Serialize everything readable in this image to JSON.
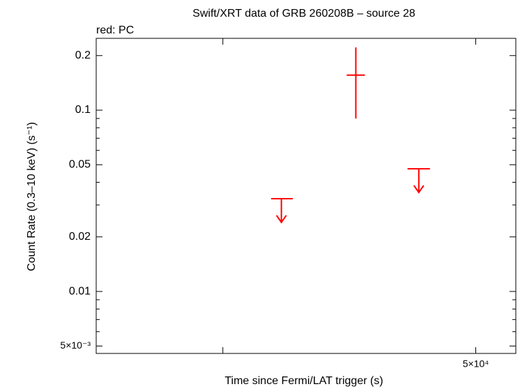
{
  "chart_data": {
    "type": "scatter",
    "title": "Swift/XRT data of GRB 260208B – source 28",
    "legend_text": "red: PC",
    "x_label": "Time since Fermi/LAT trigger (s)",
    "y_label": "Count Rate (0.3–10 keV) (s⁻¹)",
    "xlog": true,
    "ylog": true,
    "xlim": [
      35770,
      51800
    ],
    "ylim": [
      0.00455,
      0.249
    ],
    "xticks": [
      {
        "value": 50000,
        "label": "5×10⁴"
      }
    ],
    "xminorticks": [
      40000
    ],
    "yticks": [
      {
        "value": 0.005,
        "label": "5×10⁻³"
      },
      0.01,
      0.02,
      0.05,
      0.1,
      0.2
    ],
    "yminorticks": [
      0.006,
      0.007,
      0.008,
      0.009,
      0.03,
      0.04,
      0.06,
      0.07,
      0.08,
      0.09
    ],
    "series": [
      {
        "name": "PC",
        "color": "#ff0000",
        "x": [
          42120,
          44980,
          47550
        ],
        "x_low": [
          41740,
          44620,
          47080
        ],
        "x_high": [
          42550,
          45340,
          48020
        ],
        "values": [
          0.0325,
          0.156,
          0.0475
        ],
        "y_low": [
          null,
          0.0899,
          null
        ],
        "y_high": [
          null,
          0.222,
          null
        ],
        "upper_limit": [
          true,
          false,
          true
        ]
      }
    ]
  }
}
